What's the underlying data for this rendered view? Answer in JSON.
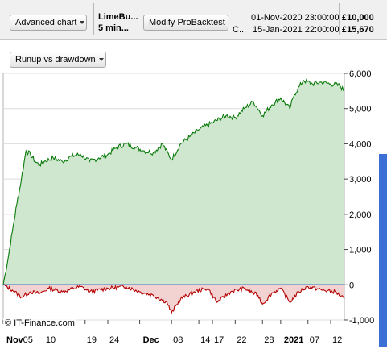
{
  "toolbar": {
    "advanced_chart_label": "Advanced chart",
    "strategy_line1": "LimeBu...",
    "strategy_line2": "5 min...",
    "modify_label": "Modify ProBacktest",
    "row1_prefix": "",
    "row1_date": "01-Nov-2020 23:00:00",
    "row1_amount": "£10,000",
    "row2_prefix": "C...",
    "row2_date": "15-Jan-2021 22:00:00",
    "row2_amount": "£15,670"
  },
  "panel": {
    "selector_label": "Runup vs drawdown",
    "watermark": "© IT-Finance.com"
  },
  "colors": {
    "equity_line": "#0a7a0a",
    "equity_fill": "#cfe7cf",
    "drawdown_line": "#b30000",
    "drawdown_fill": "#f3d2d2",
    "zero_line": "#2040c0",
    "grid": "#dcdcdc"
  },
  "chart_data": {
    "type": "area",
    "x_range": [
      "2020-11-01",
      "2021-01-15"
    ],
    "ylim": [
      -1000,
      6000
    ],
    "y_ticks": [
      {
        "value": 6000,
        "label": "6,000"
      },
      {
        "value": 5000,
        "label": "5,000"
      },
      {
        "value": 4000,
        "label": "4,000"
      },
      {
        "value": 3000,
        "label": "3,000"
      },
      {
        "value": 2000,
        "label": "2,000"
      },
      {
        "value": 1000,
        "label": "1,000"
      },
      {
        "value": 0,
        "label": "0"
      },
      {
        "value": -1000,
        "label": "-1,000"
      }
    ],
    "x_ticks": [
      {
        "date": "2020-11-01",
        "label": "Nov",
        "bold": true
      },
      {
        "date": "2020-11-05",
        "label": "05"
      },
      {
        "date": "2020-11-10",
        "label": "10"
      },
      {
        "date": "2020-11-19",
        "label": "19"
      },
      {
        "date": "2020-11-24",
        "label": "24"
      },
      {
        "date": "2020-12-01",
        "label": "Dec",
        "bold": true
      },
      {
        "date": "2020-12-08",
        "label": "08"
      },
      {
        "date": "2020-12-14",
        "label": "14"
      },
      {
        "date": "2020-12-17",
        "label": "17"
      },
      {
        "date": "2020-12-22",
        "label": "22"
      },
      {
        "date": "2020-12-28",
        "label": "28"
      },
      {
        "date": "2021-01-01",
        "label": "2021",
        "bold": true
      },
      {
        "date": "2021-01-07",
        "label": "07"
      },
      {
        "date": "2021-01-12",
        "label": "12"
      }
    ],
    "series": [
      {
        "name": "",
        "points": [
          [
            "2020-11-01",
            0
          ],
          [
            "2020-11-02",
            700
          ],
          [
            "2020-11-03",
            1500
          ],
          [
            "2020-11-04",
            2300
          ],
          [
            "2020-11-05",
            3000
          ],
          [
            "2020-11-06",
            3800
          ],
          [
            "2020-11-07",
            3700
          ],
          [
            "2020-11-08",
            3500
          ],
          [
            "2020-11-09",
            3400
          ],
          [
            "2020-11-10",
            3500
          ],
          [
            "2020-11-12",
            3600
          ],
          [
            "2020-11-14",
            3500
          ],
          [
            "2020-11-16",
            3650
          ],
          [
            "2020-11-18",
            3700
          ],
          [
            "2020-11-20",
            3500
          ],
          [
            "2020-11-22",
            3600
          ],
          [
            "2020-11-24",
            3700
          ],
          [
            "2020-11-26",
            3900
          ],
          [
            "2020-11-28",
            4000
          ],
          [
            "2020-11-30",
            3900
          ],
          [
            "2020-12-02",
            3800
          ],
          [
            "2020-12-04",
            3750
          ],
          [
            "2020-12-06",
            4000
          ],
          [
            "2020-12-08",
            3550
          ],
          [
            "2020-12-10",
            4000
          ],
          [
            "2020-12-12",
            4200
          ],
          [
            "2020-12-14",
            4400
          ],
          [
            "2020-12-17",
            4600
          ],
          [
            "2020-12-20",
            4800
          ],
          [
            "2020-12-22",
            4750
          ],
          [
            "2020-12-24",
            5000
          ],
          [
            "2020-12-26",
            5200
          ],
          [
            "2020-12-28",
            4800
          ],
          [
            "2020-12-30",
            5100
          ],
          [
            "2021-01-01",
            5300
          ],
          [
            "2021-01-03",
            5000
          ],
          [
            "2021-01-04",
            5400
          ],
          [
            "2021-01-06",
            5800
          ],
          [
            "2021-01-08",
            5700
          ],
          [
            "2021-01-10",
            5750
          ],
          [
            "2021-01-12",
            5700
          ],
          [
            "2021-01-14",
            5650
          ],
          [
            "2021-01-15",
            5500
          ]
        ]
      },
      {
        "name": "",
        "points": [
          [
            "2020-11-01",
            0
          ],
          [
            "2020-11-03",
            -150
          ],
          [
            "2020-11-05",
            -350
          ],
          [
            "2020-11-07",
            -200
          ],
          [
            "2020-11-09",
            -250
          ],
          [
            "2020-11-11",
            -100
          ],
          [
            "2020-11-14",
            -200
          ],
          [
            "2020-11-18",
            -50
          ],
          [
            "2020-11-20",
            -200
          ],
          [
            "2020-11-24",
            -100
          ],
          [
            "2020-11-28",
            -50
          ],
          [
            "2020-12-01",
            -200
          ],
          [
            "2020-12-04",
            -300
          ],
          [
            "2020-12-07",
            -500
          ],
          [
            "2020-12-08",
            -800
          ],
          [
            "2020-12-10",
            -400
          ],
          [
            "2020-12-13",
            -200
          ],
          [
            "2020-12-16",
            -100
          ],
          [
            "2020-12-18",
            -500
          ],
          [
            "2020-12-21",
            -200
          ],
          [
            "2020-12-24",
            -100
          ],
          [
            "2020-12-27",
            -300
          ],
          [
            "2020-12-28",
            -550
          ],
          [
            "2020-12-30",
            -250
          ],
          [
            "2021-01-01",
            -100
          ],
          [
            "2021-01-03",
            -500
          ],
          [
            "2021-01-05",
            -200
          ],
          [
            "2021-01-07",
            -50
          ],
          [
            "2021-01-10",
            -150
          ],
          [
            "2021-01-13",
            -200
          ],
          [
            "2021-01-15",
            -400
          ]
        ]
      }
    ],
    "grid": true
  }
}
